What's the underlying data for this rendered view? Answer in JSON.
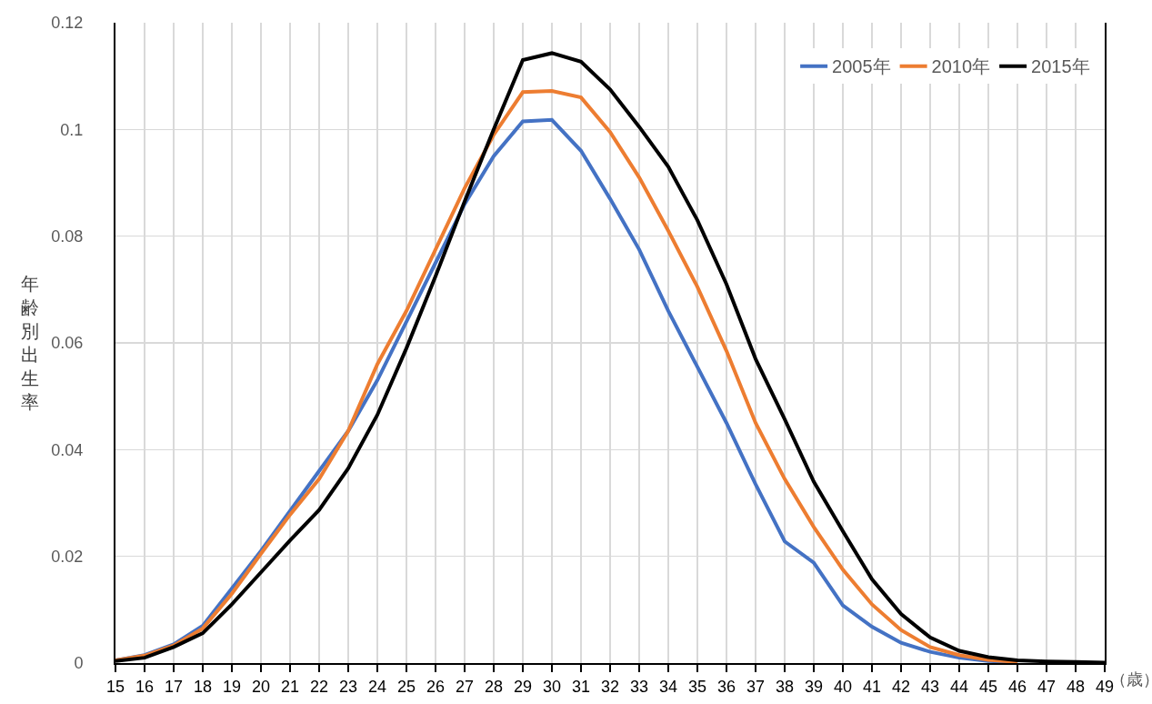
{
  "chart_data": {
    "type": "line",
    "xlabel": "（歳）",
    "ylabel": "年齢別出生率",
    "categories": [
      "15",
      "16",
      "17",
      "18",
      "19",
      "20",
      "21",
      "22",
      "23",
      "24",
      "25",
      "26",
      "27",
      "28",
      "29",
      "30",
      "31",
      "32",
      "33",
      "34",
      "35",
      "36",
      "37",
      "38",
      "39",
      "40",
      "41",
      "42",
      "43",
      "44",
      "45",
      "46",
      "47",
      "48",
      "49"
    ],
    "series": [
      {
        "name": "2005年",
        "color": "#4472c4",
        "values": [
          0.0005,
          0.0015,
          0.0035,
          0.007,
          0.014,
          0.021,
          0.0285,
          0.036,
          0.0435,
          0.053,
          0.064,
          0.075,
          0.086,
          0.095,
          0.1015,
          0.1018,
          0.096,
          0.087,
          0.0775,
          0.066,
          0.0555,
          0.045,
          0.0335,
          0.0228,
          0.0188,
          0.0108,
          0.0068,
          0.0038,
          0.0021,
          0.001,
          0.0004,
          0.0001,
          null,
          null,
          null
        ]
      },
      {
        "name": "2010年",
        "color": "#ed7d31",
        "values": [
          0.0005,
          0.0014,
          0.0033,
          0.0065,
          0.013,
          0.0205,
          0.0278,
          0.0345,
          0.0435,
          0.056,
          0.066,
          0.0775,
          0.089,
          0.099,
          0.107,
          0.1072,
          0.106,
          0.0995,
          0.091,
          0.081,
          0.0705,
          0.0585,
          0.045,
          0.0345,
          0.0255,
          0.0175,
          0.011,
          0.0062,
          0.003,
          0.0015,
          0.0006,
          0.0002,
          null,
          null,
          null
        ]
      },
      {
        "name": "2015年",
        "color": "#000000",
        "values": [
          0.0004,
          0.001,
          0.003,
          0.0056,
          0.011,
          0.017,
          0.023,
          0.0287,
          0.0365,
          0.0465,
          0.059,
          0.0725,
          0.0865,
          0.1,
          0.113,
          0.1143,
          0.1127,
          0.1075,
          0.1005,
          0.093,
          0.083,
          0.071,
          0.057,
          0.0457,
          0.034,
          0.0247,
          0.0157,
          0.0092,
          0.0048,
          0.0023,
          0.0011,
          0.0005,
          0.0003,
          0.0002,
          0.0001
        ]
      }
    ],
    "ylim": [
      0,
      0.12
    ],
    "yticks": [
      0,
      0.02,
      0.04,
      0.06,
      0.08,
      0.1,
      0.12
    ],
    "grid": true,
    "legend": "top right",
    "marker": "none",
    "line_style": "solid"
  }
}
